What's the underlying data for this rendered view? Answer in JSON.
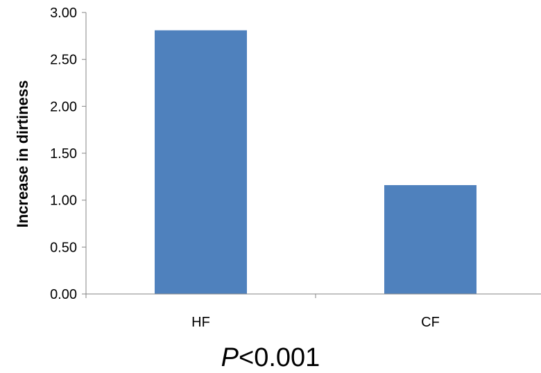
{
  "chart_data": {
    "type": "bar",
    "title": "",
    "xlabel": "",
    "ylabel": "Increase in dirtiness",
    "categories": [
      "HF",
      "CF"
    ],
    "values": [
      2.81,
      1.16
    ],
    "ylim": [
      0,
      3
    ],
    "yticks": [
      "0.00",
      "0.50",
      "1.00",
      "1.50",
      "2.00",
      "2.50",
      "3.00"
    ],
    "grid": false,
    "bar_color": "#4F81BD",
    "axis_color": "#868686"
  },
  "annotation": {
    "p_letter": "P",
    "p_rest": "<0.001"
  }
}
